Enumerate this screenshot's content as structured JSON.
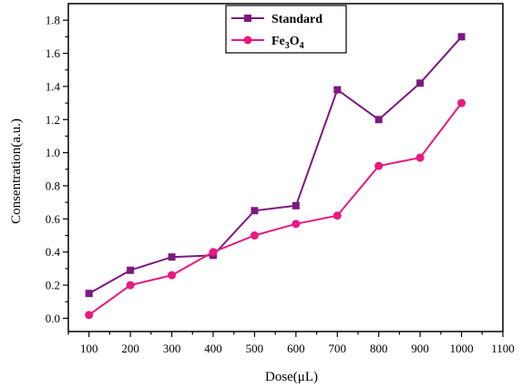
{
  "chart_data": {
    "type": "line",
    "xlabel": "Dose(μL)",
    "ylabel": "Consentration(a.u.)",
    "xlim": [
      50,
      1100
    ],
    "ylim": [
      -0.08,
      1.9
    ],
    "xticks": [
      100,
      200,
      300,
      400,
      500,
      600,
      700,
      800,
      900,
      1000,
      1100
    ],
    "yticks": [
      0.0,
      0.2,
      0.4,
      0.6,
      0.8,
      1.0,
      1.2,
      1.4,
      1.6,
      1.8
    ],
    "ytick_labels": [
      "0.0",
      "0.2",
      "0.4",
      "0.6",
      "0.8",
      "1.0",
      "1.2",
      "1.4",
      "1.6",
      "1.8"
    ],
    "x": [
      100,
      200,
      300,
      400,
      500,
      600,
      700,
      800,
      900,
      1000
    ],
    "legend_position": "top-center",
    "series": [
      {
        "name": "Standard",
        "label_main": "Standard",
        "marker": "square",
        "color": "#7b1a7f",
        "values": [
          0.15,
          0.29,
          0.37,
          0.38,
          0.65,
          0.68,
          1.38,
          1.2,
          1.42,
          1.7
        ]
      },
      {
        "name": "Fe3O4",
        "label_main": "Fe",
        "label_sub1": "3",
        "label_mid": "O",
        "label_sub2": "4",
        "marker": "circle",
        "color": "#e8197f",
        "values": [
          0.02,
          0.2,
          0.26,
          0.4,
          0.5,
          0.57,
          0.62,
          0.92,
          0.97,
          1.3
        ]
      }
    ]
  }
}
